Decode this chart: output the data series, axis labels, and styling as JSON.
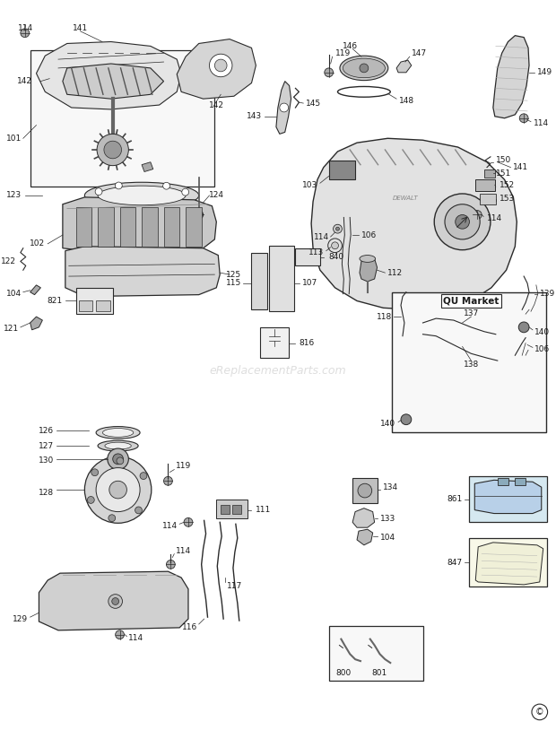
{
  "bg_color": "#ffffff",
  "watermark": "eReplacementParts.com",
  "fig_width": 6.2,
  "fig_height": 8.14,
  "dpi": 100,
  "line_color": "#2a2a2a",
  "label_color": "#1a1a1a",
  "part_fill": "#e8e8e8",
  "part_fill2": "#d0d0d0",
  "part_fill3": "#c0c0c0",
  "box_fill": "#f5f5f5"
}
